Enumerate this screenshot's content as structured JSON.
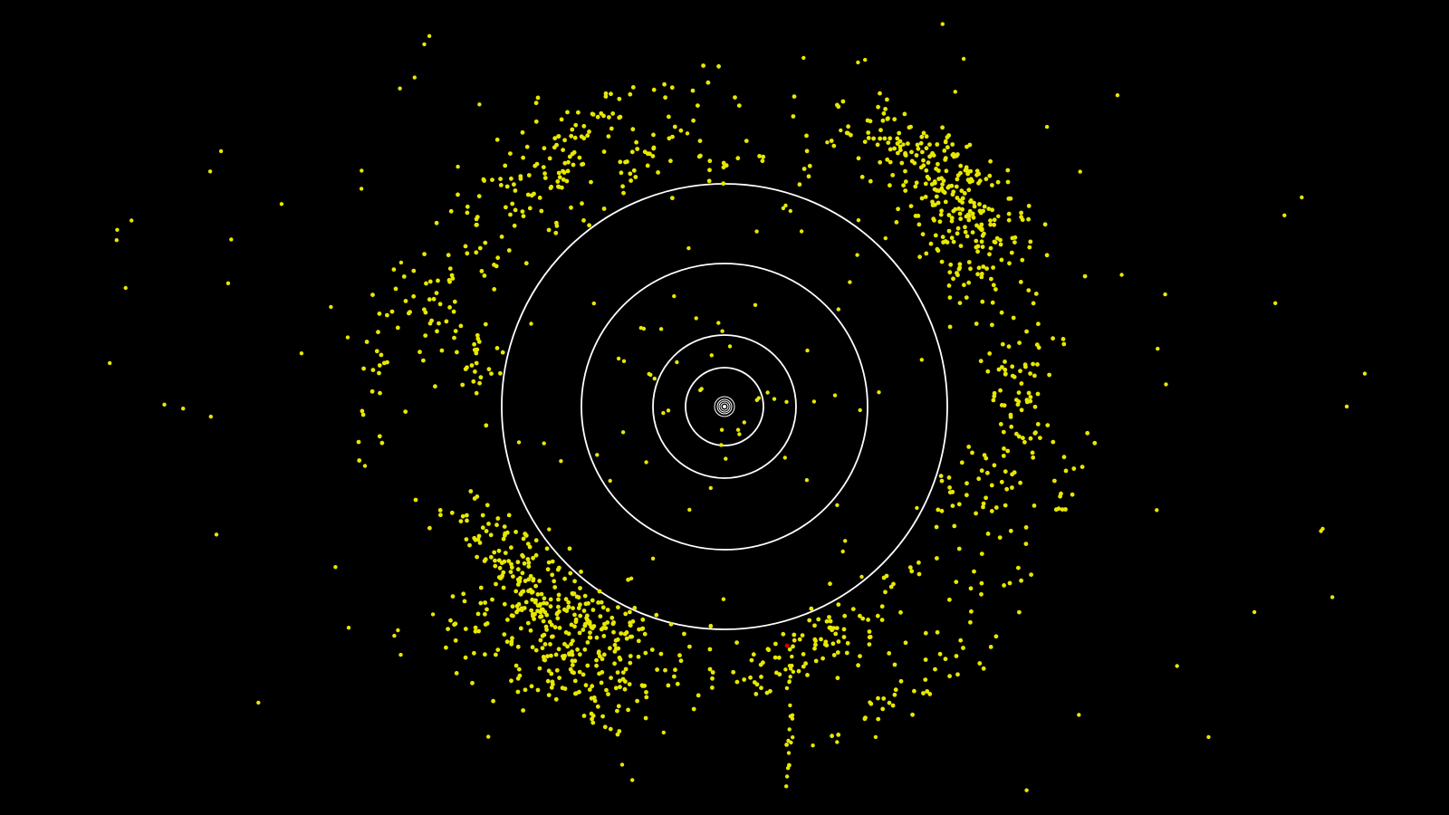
{
  "scene": {
    "subject": "solar-system-orbits-with-kuiper-belt-objects",
    "background_color": "#000000",
    "orbit_color": "#ffffff",
    "object_color": "#e8e800",
    "highlight_object_color": "#cc0000",
    "orbit_count": 8,
    "object_count_approx": 1500,
    "highlighted_object_count": 1
  }
}
